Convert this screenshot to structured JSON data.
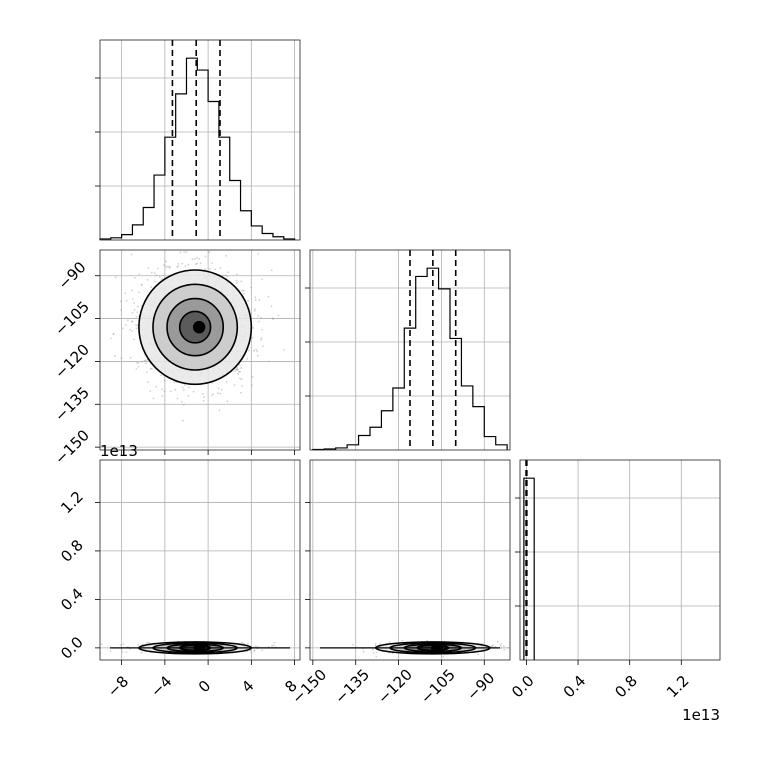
{
  "chart_data": {
    "type": "corner",
    "parameters": [
      "",
      "",
      ""
    ],
    "panels": [
      {
        "id": "hist-p1",
        "type": "histogram",
        "xlim": [
          -10,
          8.5
        ],
        "xticks": [
          -8,
          -4,
          0,
          4,
          8
        ],
        "quantiles": [
          -3.3,
          -1.1,
          1.1
        ],
        "bins": [
          {
            "x": -9.5,
            "count": 1
          },
          {
            "x": -8.5,
            "count": 2
          },
          {
            "x": -7.5,
            "count": 5
          },
          {
            "x": -6.5,
            "count": 14
          },
          {
            "x": -5.5,
            "count": 30
          },
          {
            "x": -4.5,
            "count": 60
          },
          {
            "x": -3.5,
            "count": 95
          },
          {
            "x": -2.5,
            "count": 135
          },
          {
            "x": -1.5,
            "count": 168
          },
          {
            "x": -0.5,
            "count": 157
          },
          {
            "x": 0.5,
            "count": 128
          },
          {
            "x": 1.5,
            "count": 95
          },
          {
            "x": 2.5,
            "count": 55
          },
          {
            "x": 3.5,
            "count": 27
          },
          {
            "x": 4.5,
            "count": 13
          },
          {
            "x": 5.5,
            "count": 6
          },
          {
            "x": 6.5,
            "count": 3
          },
          {
            "x": 7.5,
            "count": 1
          }
        ]
      },
      {
        "id": "hist-p2",
        "type": "histogram",
        "xlim": [
          -151,
          -81
        ],
        "xticks": [
          -150,
          -135,
          -120,
          -105,
          -90
        ],
        "quantiles": [
          -116,
          -108,
          -100
        ],
        "bins": [
          {
            "x": -148,
            "count": 0.5
          },
          {
            "x": -144,
            "count": 1
          },
          {
            "x": -140,
            "count": 2
          },
          {
            "x": -136,
            "count": 5
          },
          {
            "x": -132,
            "count": 14
          },
          {
            "x": -128,
            "count": 22
          },
          {
            "x": -124,
            "count": 38
          },
          {
            "x": -120,
            "count": 60
          },
          {
            "x": -116,
            "count": 118
          },
          {
            "x": -112,
            "count": 168
          },
          {
            "x": -108,
            "count": 176
          },
          {
            "x": -104,
            "count": 156
          },
          {
            "x": -100,
            "count": 108
          },
          {
            "x": -96,
            "count": 62
          },
          {
            "x": -92,
            "count": 42
          },
          {
            "x": -88,
            "count": 13
          },
          {
            "x": -84,
            "count": 5
          }
        ]
      },
      {
        "id": "hist-p3",
        "type": "histogram",
        "xlim": [
          -0.05,
          1.5
        ],
        "xticks": [
          "0.0",
          "0.4",
          "0.8",
          "1.2"
        ],
        "xtick_values": [
          0.0,
          0.4,
          0.8,
          1.2
        ],
        "x_offset": "1e13",
        "quantiles": [
          -0.003,
          0.0,
          0.003
        ],
        "bins": [
          {
            "x0": -0.02,
            "x1": 0.02,
            "count": 0.95
          },
          {
            "x0": 0.02,
            "x1": 0.06,
            "count": 0.95
          }
        ]
      },
      {
        "id": "scatter-p1-p2",
        "type": "scatter-contour",
        "xlim": [
          -10,
          8.5
        ],
        "ylim": [
          -151,
          -81
        ],
        "yticks": [
          -90,
          -105,
          -120,
          -135,
          -150
        ],
        "center": [
          -1.2,
          -108
        ],
        "spread": [
          2.6,
          10
        ]
      },
      {
        "id": "scatter-p1-p3",
        "type": "scatter-contour",
        "xlim": [
          -10,
          8.5
        ],
        "xticks": [
          -8,
          -4,
          0,
          4,
          8
        ],
        "ylim": [
          -0.1,
          1.55
        ],
        "yticks": [
          "0.0",
          "0.4",
          "0.8",
          "1.2"
        ],
        "ytick_values": [
          0.0,
          0.4,
          0.8,
          1.2
        ],
        "y_offset": "1e13",
        "center": [
          -1.2,
          0.0
        ],
        "spread": [
          2.6,
          0.02
        ]
      },
      {
        "id": "scatter-p2-p3",
        "type": "scatter-contour",
        "xlim": [
          -151,
          -81
        ],
        "xticks": [
          -150,
          -135,
          -120,
          -105,
          -90
        ],
        "ylim": [
          -0.1,
          1.55
        ],
        "center": [
          -108,
          0.0
        ],
        "spread": [
          10,
          0.02
        ]
      }
    ]
  }
}
